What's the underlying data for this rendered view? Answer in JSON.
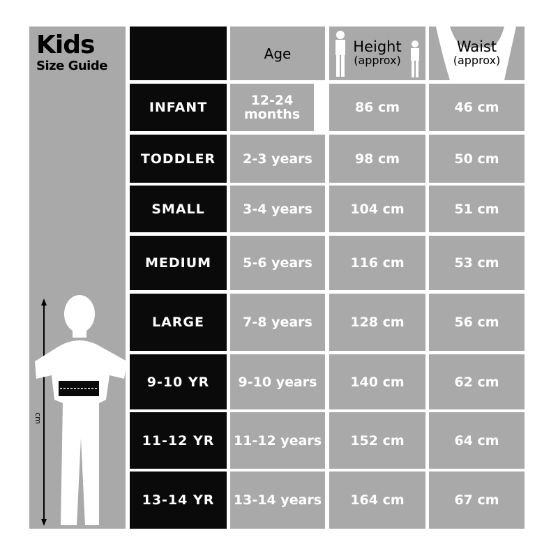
{
  "title": {
    "main": "Kids",
    "sub": "Size Guide"
  },
  "side_label": "cm",
  "headers": {
    "age": "Age",
    "height": "Height",
    "height_sub": "(approx)",
    "waist": "Waist",
    "waist_sub": "(approx)"
  },
  "rows": [
    {
      "size": "INFANT",
      "age": "12-24 months",
      "height": "86 cm",
      "waist": "46 cm"
    },
    {
      "size": "TODDLER",
      "age": "2-3 years",
      "height": "98 cm",
      "waist": "50 cm"
    },
    {
      "size": "SMALL",
      "age": "3-4 years",
      "height": "104 cm",
      "waist": "51 cm"
    },
    {
      "size": "MEDIUM",
      "age": "5-6 years",
      "height": "116 cm",
      "waist": "53 cm"
    },
    {
      "size": "LARGE",
      "age": "7-8 years",
      "height": "128 cm",
      "waist": "56 cm"
    },
    {
      "size": "9-10 YR",
      "age": "9-10 years",
      "height": "140 cm",
      "waist": "62 cm"
    },
    {
      "size": "11-12 YR",
      "age": "11-12 years",
      "height": "152 cm",
      "waist": "64 cm"
    },
    {
      "size": "13-14 YR",
      "age": "13-14 years",
      "height": "164 cm",
      "waist": "67 cm"
    }
  ]
}
